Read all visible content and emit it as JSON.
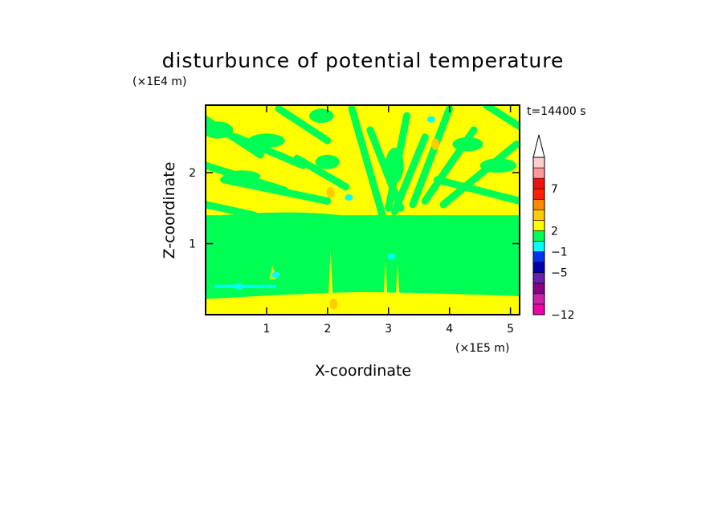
{
  "chart_data": {
    "type": "heatmap",
    "title": "disturbunce of potential temperature",
    "xlabel": "X-coordinate",
    "ylabel": "Z-coordinate",
    "x_unit": "(×1E5 m)",
    "y_unit": "(×1E4 m)",
    "time_label": "t=14400 s",
    "xlim": [
      0,
      5.15
    ],
    "ylim": [
      0,
      2.95
    ],
    "x_ticks": [
      1,
      2,
      3,
      4,
      5
    ],
    "x_tick_labels": [
      "1",
      "2",
      "3",
      "4",
      "5"
    ],
    "y_ticks": [
      1,
      2
    ],
    "y_tick_labels": [
      "1",
      "2"
    ],
    "colorbar": {
      "labels": [
        {
          "value": 7,
          "text": "7"
        },
        {
          "value": 2,
          "text": "2"
        },
        {
          "value": -1,
          "text": "−1"
        },
        {
          "value": -5,
          "text": "−5"
        },
        {
          "value": -12,
          "text": "−12"
        }
      ],
      "colors": [
        "#ee00aa",
        "#cc22aa",
        "#880088",
        "#6622aa",
        "#0000aa",
        "#0033ee",
        "#00ffff",
        "#00ff55",
        "#ffff00",
        "#ffcc00",
        "#ff8800",
        "#ff2200",
        "#ee1111",
        "#ff9999",
        "#ffcccc"
      ],
      "extend_top": true
    },
    "fields": {
      "background": "#00ff55",
      "surface_band": {
        "z_range": [
          0,
          0.25
        ],
        "color": "#ffff00"
      },
      "upper_layer": {
        "z_range": [
          1.4,
          2.95
        ],
        "pattern": "alternating yellow and green bands"
      },
      "warm_spots": [
        {
          "x": 2.05,
          "z": 1.72,
          "color": "#ffcc00"
        },
        {
          "x": 3.77,
          "z": 2.4,
          "color": "#ffcc00"
        },
        {
          "x": 2.1,
          "z": 0.15,
          "color": "#ffcc00"
        }
      ],
      "cool_spots": [
        {
          "x": 0.55,
          "z": 0.4,
          "color": "#00ffff"
        },
        {
          "x": 1.15,
          "z": 0.56,
          "color": "#00ffff"
        },
        {
          "x": 3.05,
          "z": 0.82,
          "color": "#00ffff"
        },
        {
          "x": 3.7,
          "z": 2.75,
          "color": "#00ffff"
        },
        {
          "x": 2.35,
          "z": 1.65,
          "color": "#00ffff"
        }
      ]
    }
  }
}
